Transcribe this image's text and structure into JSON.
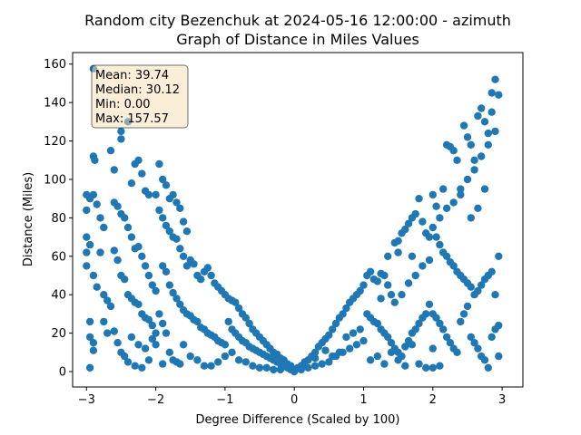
{
  "chart_data": {
    "type": "scatter",
    "title": "Random city Bezenchuk at 2024-05-16 12:00:00  - azimuth",
    "subtitle": "Graph of Distance in Miles Values",
    "xlabel": "Degree Difference (Scaled by 100)",
    "ylabel": "Distance (Miles)",
    "xlim": [
      -3.2,
      3.3
    ],
    "ylim": [
      -8,
      166
    ],
    "x_ticks": [
      -3,
      -2,
      -1,
      0,
      1,
      2,
      3
    ],
    "y_ticks": [
      0,
      20,
      40,
      60,
      80,
      100,
      120,
      140,
      160
    ],
    "marker_color": "#1f77b4",
    "stats_box": {
      "placement": "top-left",
      "lines": [
        "Mean: 39.74",
        "Median: 30.12",
        "Min: 0.00",
        "Max: 157.57"
      ],
      "face_color": "#f5deb3",
      "edge_color": "#000000"
    },
    "points": [
      [
        -2.9,
        157.6
      ],
      [
        -2.9,
        112
      ],
      [
        -2.88,
        110
      ],
      [
        -3.0,
        92
      ],
      [
        -2.95,
        90
      ],
      [
        -2.9,
        92
      ],
      [
        -2.85,
        87
      ],
      [
        -3.0,
        84
      ],
      [
        -2.8,
        80
      ],
      [
        -2.75,
        75
      ],
      [
        -3.0,
        70
      ],
      [
        -2.95,
        66
      ],
      [
        -2.8,
        62
      ],
      [
        -3.0,
        62
      ],
      [
        -3.0,
        55
      ],
      [
        -2.9,
        50
      ],
      [
        -2.85,
        44
      ],
      [
        -2.75,
        40
      ],
      [
        -2.7,
        37
      ],
      [
        -2.65,
        34
      ],
      [
        -2.95,
        26
      ],
      [
        -2.95,
        18
      ],
      [
        -2.9,
        15
      ],
      [
        -2.9,
        11
      ],
      [
        -2.95,
        2
      ],
      [
        -2.75,
        26
      ],
      [
        -2.7,
        20
      ],
      [
        -2.65,
        115
      ],
      [
        -2.6,
        105
      ],
      [
        -2.5,
        125
      ],
      [
        -2.5,
        121
      ],
      [
        -2.4,
        130
      ],
      [
        -2.35,
        98
      ],
      [
        -2.3,
        108
      ],
      [
        -2.25,
        110
      ],
      [
        -2.2,
        103
      ],
      [
        -2.15,
        94
      ],
      [
        -2.1,
        92
      ],
      [
        -2.0,
        92
      ],
      [
        -2.6,
        88
      ],
      [
        -2.55,
        86
      ],
      [
        -2.5,
        82
      ],
      [
        -2.45,
        80
      ],
      [
        -2.4,
        75
      ],
      [
        -2.35,
        70
      ],
      [
        -2.3,
        64
      ],
      [
        -2.25,
        65
      ],
      [
        -2.2,
        60
      ],
      [
        -2.15,
        55
      ],
      [
        -2.1,
        50
      ],
      [
        -2.05,
        45
      ],
      [
        -2.0,
        42
      ],
      [
        -2.6,
        63
      ],
      [
        -2.55,
        58
      ],
      [
        -2.5,
        50
      ],
      [
        -2.45,
        48
      ],
      [
        -2.4,
        40
      ],
      [
        -2.35,
        38
      ],
      [
        -2.3,
        36
      ],
      [
        -2.25,
        35
      ],
      [
        -2.2,
        30
      ],
      [
        -2.15,
        28
      ],
      [
        -2.1,
        27
      ],
      [
        -2.05,
        24
      ],
      [
        -2.0,
        20
      ],
      [
        -2.6,
        21
      ],
      [
        -2.55,
        15
      ],
      [
        -2.5,
        10
      ],
      [
        -2.45,
        8
      ],
      [
        -2.4,
        5
      ],
      [
        -2.3,
        3
      ],
      [
        -2.2,
        2
      ],
      [
        -2.1,
        6
      ],
      [
        -2.0,
        14
      ],
      [
        -2.35,
        18
      ],
      [
        -2.25,
        14
      ],
      [
        -2.15,
        12
      ],
      [
        -2.05,
        17
      ],
      [
        -1.95,
        108
      ],
      [
        -1.9,
        100
      ],
      [
        -1.85,
        97
      ],
      [
        -1.8,
        90
      ],
      [
        -1.75,
        92
      ],
      [
        -1.7,
        88
      ],
      [
        -1.65,
        85
      ],
      [
        -1.6,
        78
      ],
      [
        -1.55,
        73
      ],
      [
        -1.95,
        84
      ],
      [
        -1.9,
        80
      ],
      [
        -1.85,
        76
      ],
      [
        -1.8,
        73
      ],
      [
        -1.75,
        70
      ],
      [
        -1.7,
        69
      ],
      [
        -1.65,
        64
      ],
      [
        -1.6,
        60
      ],
      [
        -1.55,
        55
      ],
      [
        -1.5,
        58
      ],
      [
        -1.45,
        56
      ],
      [
        -1.4,
        50
      ],
      [
        -1.35,
        48
      ],
      [
        -1.3,
        52
      ],
      [
        -1.25,
        54
      ],
      [
        -1.2,
        50
      ],
      [
        -1.15,
        46
      ],
      [
        -1.1,
        44
      ],
      [
        -1.05,
        42
      ],
      [
        -1.0,
        40
      ],
      [
        -1.9,
        55
      ],
      [
        -1.85,
        52
      ],
      [
        -1.8,
        45
      ],
      [
        -1.75,
        41
      ],
      [
        -1.7,
        38
      ],
      [
        -1.65,
        35
      ],
      [
        -1.6,
        32
      ],
      [
        -1.55,
        30
      ],
      [
        -1.5,
        29
      ],
      [
        -1.45,
        27
      ],
      [
        -1.4,
        26
      ],
      [
        -1.35,
        23
      ],
      [
        -1.3,
        22
      ],
      [
        -1.25,
        20
      ],
      [
        -1.2,
        19
      ],
      [
        -1.15,
        18
      ],
      [
        -1.1,
        16
      ],
      [
        -1.05,
        15
      ],
      [
        -1.0,
        14
      ],
      [
        -1.95,
        30
      ],
      [
        -1.9,
        25
      ],
      [
        -1.85,
        20
      ],
      [
        -1.8,
        10
      ],
      [
        -1.75,
        6
      ],
      [
        -1.7,
        5
      ],
      [
        -1.6,
        14
      ],
      [
        -1.5,
        8
      ],
      [
        -1.4,
        6
      ],
      [
        -1.3,
        3
      ],
      [
        -1.2,
        3
      ],
      [
        -1.1,
        5
      ],
      [
        -1.0,
        8
      ],
      [
        -1.9,
        4
      ],
      [
        -1.65,
        4
      ],
      [
        -0.95,
        38
      ],
      [
        -0.9,
        37
      ],
      [
        -0.85,
        36
      ],
      [
        -0.8,
        33
      ],
      [
        -0.75,
        30
      ],
      [
        -0.7,
        28
      ],
      [
        -0.65,
        25
      ],
      [
        -0.6,
        22
      ],
      [
        -0.55,
        20
      ],
      [
        -0.5,
        18
      ],
      [
        -0.45,
        16
      ],
      [
        -0.4,
        14
      ],
      [
        -0.35,
        12
      ],
      [
        -0.3,
        10
      ],
      [
        -0.25,
        9
      ],
      [
        -0.2,
        7
      ],
      [
        -0.15,
        6
      ],
      [
        -0.1,
        4
      ],
      [
        -0.05,
        3
      ],
      [
        -0.95,
        26
      ],
      [
        -0.9,
        22
      ],
      [
        -0.85,
        20
      ],
      [
        -0.8,
        18
      ],
      [
        -0.75,
        16
      ],
      [
        -0.7,
        15
      ],
      [
        -0.65,
        13
      ],
      [
        -0.6,
        12
      ],
      [
        -0.55,
        11
      ],
      [
        -0.5,
        10
      ],
      [
        -0.45,
        9
      ],
      [
        -0.4,
        8
      ],
      [
        -0.35,
        7
      ],
      [
        -0.3,
        6
      ],
      [
        -0.25,
        5
      ],
      [
        -0.2,
        4
      ],
      [
        -0.15,
        3
      ],
      [
        -0.1,
        2
      ],
      [
        -0.05,
        1
      ],
      [
        -0.9,
        10
      ],
      [
        -0.8,
        6
      ],
      [
        -0.7,
        5
      ],
      [
        -0.6,
        3
      ],
      [
        -0.5,
        2
      ],
      [
        -0.4,
        2
      ],
      [
        -0.3,
        1
      ],
      [
        -0.2,
        1
      ],
      [
        0.0,
        0
      ],
      [
        0.05,
        2
      ],
      [
        0.1,
        3
      ],
      [
        0.15,
        5
      ],
      [
        0.2,
        6
      ],
      [
        0.25,
        8
      ],
      [
        0.3,
        10
      ],
      [
        0.35,
        13
      ],
      [
        0.4,
        15
      ],
      [
        0.45,
        17
      ],
      [
        0.5,
        19
      ],
      [
        0.55,
        22
      ],
      [
        0.6,
        25
      ],
      [
        0.65,
        28
      ],
      [
        0.7,
        30
      ],
      [
        0.75,
        33
      ],
      [
        0.8,
        36
      ],
      [
        0.85,
        38
      ],
      [
        0.9,
        40
      ],
      [
        0.95,
        42
      ],
      [
        1.0,
        45
      ],
      [
        0.1,
        1
      ],
      [
        0.2,
        2
      ],
      [
        0.3,
        3
      ],
      [
        0.4,
        4
      ],
      [
        0.5,
        5
      ],
      [
        0.6,
        8
      ],
      [
        0.7,
        10
      ],
      [
        0.8,
        12
      ],
      [
        0.9,
        14
      ],
      [
        1.0,
        16
      ],
      [
        0.55,
        8
      ],
      [
        0.65,
        10
      ],
      [
        0.75,
        18
      ],
      [
        0.85,
        20
      ],
      [
        0.95,
        22
      ],
      [
        0.3,
        7
      ],
      [
        0.45,
        11
      ],
      [
        1.05,
        50
      ],
      [
        1.1,
        52
      ],
      [
        1.15,
        48
      ],
      [
        1.2,
        47
      ],
      [
        1.25,
        51
      ],
      [
        1.3,
        50
      ],
      [
        1.35,
        45
      ],
      [
        1.4,
        40
      ],
      [
        1.45,
        67
      ],
      [
        1.5,
        68
      ],
      [
        1.55,
        72
      ],
      [
        1.6,
        74
      ],
      [
        1.65,
        77
      ],
      [
        1.7,
        80
      ],
      [
        1.75,
        82
      ],
      [
        1.8,
        90
      ],
      [
        1.85,
        78
      ],
      [
        1.9,
        72
      ],
      [
        1.95,
        70
      ],
      [
        1.05,
        30
      ],
      [
        1.1,
        28
      ],
      [
        1.15,
        26
      ],
      [
        1.2,
        25
      ],
      [
        1.25,
        22
      ],
      [
        1.3,
        20
      ],
      [
        1.35,
        18
      ],
      [
        1.4,
        15
      ],
      [
        1.45,
        12
      ],
      [
        1.5,
        10
      ],
      [
        1.55,
        8
      ],
      [
        1.6,
        13
      ],
      [
        1.65,
        16
      ],
      [
        1.7,
        20
      ],
      [
        1.75,
        22
      ],
      [
        1.8,
        25
      ],
      [
        1.85,
        28
      ],
      [
        1.9,
        30
      ],
      [
        1.95,
        35
      ],
      [
        1.1,
        6
      ],
      [
        1.2,
        8
      ],
      [
        1.3,
        4
      ],
      [
        1.4,
        10
      ],
      [
        1.5,
        6
      ],
      [
        1.6,
        3
      ],
      [
        1.7,
        14
      ],
      [
        1.8,
        4
      ],
      [
        1.9,
        2
      ],
      [
        1.45,
        36
      ],
      [
        1.55,
        40
      ],
      [
        1.65,
        46
      ],
      [
        1.75,
        50
      ],
      [
        1.85,
        55
      ],
      [
        1.95,
        58
      ],
      [
        1.25,
        38
      ],
      [
        1.35,
        60
      ],
      [
        1.5,
        62
      ],
      [
        1.7,
        60
      ],
      [
        2.0,
        92
      ],
      [
        2.05,
        86
      ],
      [
        2.1,
        80
      ],
      [
        2.15,
        95
      ],
      [
        2.2,
        118
      ],
      [
        2.25,
        117
      ],
      [
        2.3,
        115
      ],
      [
        2.35,
        110
      ],
      [
        2.4,
        95
      ],
      [
        2.45,
        128
      ],
      [
        2.5,
        122
      ],
      [
        2.55,
        118
      ],
      [
        2.6,
        110
      ],
      [
        2.65,
        133
      ],
      [
        2.7,
        137
      ],
      [
        2.75,
        130
      ],
      [
        2.8,
        124
      ],
      [
        2.85,
        145
      ],
      [
        2.9,
        152
      ],
      [
        2.95,
        144
      ],
      [
        2.0,
        75
      ],
      [
        2.05,
        70
      ],
      [
        2.1,
        66
      ],
      [
        2.15,
        62
      ],
      [
        2.2,
        60
      ],
      [
        2.25,
        57
      ],
      [
        2.3,
        55
      ],
      [
        2.35,
        52
      ],
      [
        2.4,
        50
      ],
      [
        2.45,
        48
      ],
      [
        2.5,
        46
      ],
      [
        2.55,
        44
      ],
      [
        2.6,
        40
      ],
      [
        2.65,
        42
      ],
      [
        2.7,
        45
      ],
      [
        2.75,
        48
      ],
      [
        2.8,
        50
      ],
      [
        2.85,
        52
      ],
      [
        2.9,
        40
      ],
      [
        2.95,
        60
      ],
      [
        2.0,
        30
      ],
      [
        2.05,
        28
      ],
      [
        2.1,
        25
      ],
      [
        2.15,
        22
      ],
      [
        2.2,
        18
      ],
      [
        2.25,
        15
      ],
      [
        2.3,
        12
      ],
      [
        2.35,
        10
      ],
      [
        2.4,
        26
      ],
      [
        2.45,
        30
      ],
      [
        2.5,
        34
      ],
      [
        2.55,
        18
      ],
      [
        2.6,
        15
      ],
      [
        2.65,
        12
      ],
      [
        2.7,
        8
      ],
      [
        2.75,
        6
      ],
      [
        2.8,
        2
      ],
      [
        2.85,
        18
      ],
      [
        2.9,
        22
      ],
      [
        2.95,
        24
      ],
      [
        2.95,
        8
      ],
      [
        2.0,
        2
      ],
      [
        2.1,
        3
      ],
      [
        2.0,
        12
      ],
      [
        2.2,
        85
      ],
      [
        2.3,
        88
      ],
      [
        2.4,
        92
      ],
      [
        2.5,
        100
      ],
      [
        2.6,
        105
      ],
      [
        2.7,
        112
      ],
      [
        2.8,
        118
      ],
      [
        2.85,
        135
      ],
      [
        2.9,
        125
      ],
      [
        2.75,
        95
      ],
      [
        2.65,
        85
      ],
      [
        2.55,
        80
      ]
    ]
  }
}
